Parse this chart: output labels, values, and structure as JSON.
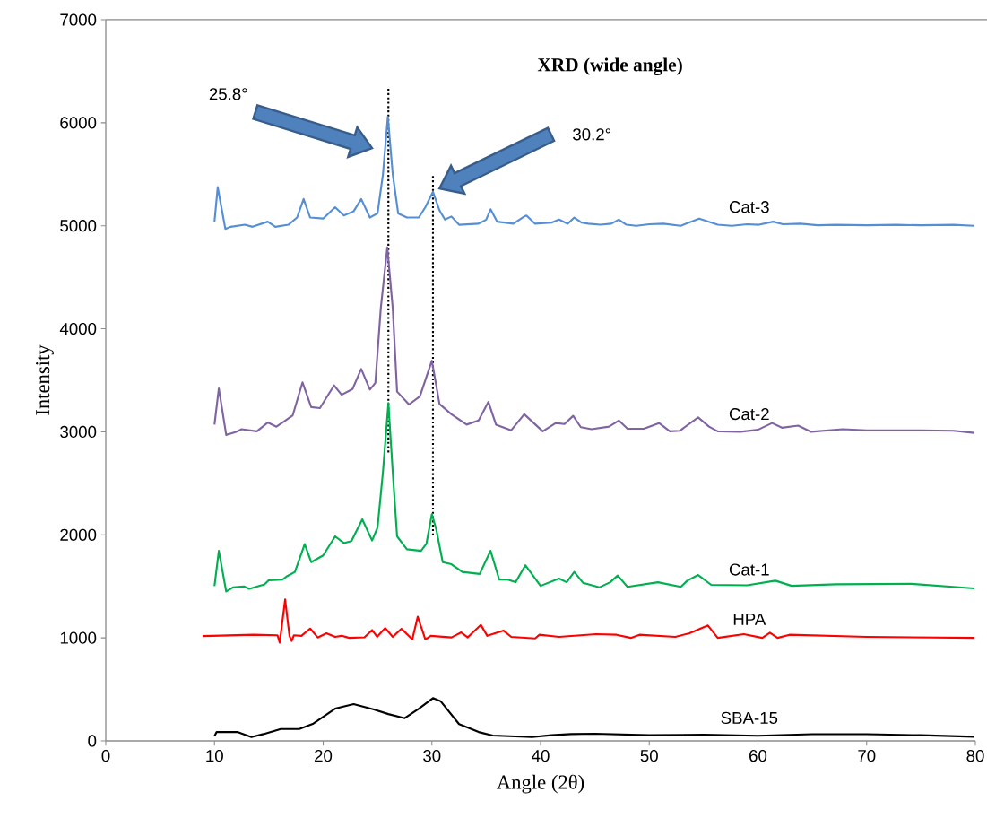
{
  "chart_data": {
    "type": "line",
    "title": "XRD (wide angle)",
    "xlabel": "Angle (2θ)",
    "ylabel": "Intensity",
    "xlim": [
      0,
      80
    ],
    "ylim": [
      0,
      7000
    ],
    "xticks": [
      0,
      10,
      20,
      30,
      40,
      50,
      60,
      70,
      80
    ],
    "yticks": [
      0,
      1000,
      2000,
      3000,
      4000,
      5000,
      6000,
      7000
    ],
    "grid": false,
    "line_style": "solid",
    "ref_lines": [
      {
        "axis": "x",
        "value": 26.0,
        "line_style": "dotted",
        "color": "#000000"
      },
      {
        "axis": "x",
        "value": 30.1,
        "line_style": "dotted",
        "color": "#000000"
      }
    ],
    "annotations": [
      "25.8°",
      "30.2°"
    ],
    "series": [
      {
        "name": "Cat-3",
        "color": "#558ed5",
        "x": [
          10,
          10.3,
          10.6,
          11.0,
          11.5,
          12.8,
          13.5,
          14.9,
          15.6,
          16.8,
          17.6,
          18.2,
          18.8,
          20.0,
          21.1,
          21.9,
          22.8,
          23.5,
          24.3,
          25.0,
          25.5,
          25.95,
          26.4,
          26.9,
          27.7,
          28.8,
          29.4,
          30.1,
          30.7,
          31.2,
          31.8,
          32.5,
          34.3,
          35.0,
          35.4,
          36.0,
          37.5,
          38.5,
          38.7,
          39.5,
          41.0,
          41.7,
          42.5,
          43.1,
          43.8,
          44.4,
          45.5,
          46.5,
          47.2,
          47.9,
          48.8,
          50.0,
          51.3,
          52.9,
          54.6,
          56.3,
          57.6,
          59.0,
          60.1,
          61.4,
          62.3,
          63.9,
          65.5,
          67.2,
          70,
          72.7,
          75,
          78,
          79.9
        ],
        "values": [
          5040,
          5375,
          5200,
          4970,
          4990,
          5010,
          4990,
          5040,
          4990,
          5010,
          5080,
          5260,
          5080,
          5070,
          5180,
          5100,
          5140,
          5260,
          5080,
          5120,
          5500,
          6060,
          5500,
          5120,
          5080,
          5080,
          5180,
          5330,
          5150,
          5060,
          5090,
          5010,
          5020,
          5060,
          5160,
          5040,
          5020,
          5090,
          5100,
          5020,
          5030,
          5060,
          5020,
          5080,
          5030,
          5020,
          5010,
          5020,
          5060,
          5010,
          5000,
          5015,
          5020,
          5000,
          5070,
          5010,
          5000,
          5015,
          5010,
          5040,
          5015,
          5020,
          5005,
          5010,
          5005,
          5010,
          5005,
          5010,
          5000
        ]
      },
      {
        "name": "Cat-2",
        "color": "#8064a2",
        "x": [
          10.0,
          10.4,
          11.08,
          12.0,
          12.5,
          13.9,
          14.9,
          15.7,
          16.4,
          17.2,
          18.1,
          18.9,
          19.7,
          21.0,
          21.7,
          22.7,
          23.5,
          24.3,
          24.8,
          25.3,
          25.9,
          26.4,
          26.8,
          27.9,
          28.9,
          30.0,
          30.7,
          31.8,
          33.2,
          34.3,
          35.2,
          35.9,
          37.3,
          38.5,
          40.2,
          41.4,
          42.2,
          43.0,
          43.7,
          44.7,
          46.3,
          47.2,
          48.0,
          49.5,
          50.9,
          51.9,
          52.8,
          54.5,
          55.5,
          56.3,
          58.4,
          60,
          61.3,
          62.2,
          63.7,
          64.9,
          67.8,
          70,
          72.7,
          75,
          78,
          79.9
        ],
        "values": [
          3070,
          3420,
          2970,
          3000,
          3025,
          3005,
          3090,
          3050,
          3100,
          3160,
          3480,
          3240,
          3230,
          3450,
          3360,
          3415,
          3610,
          3410,
          3475,
          4200,
          4790,
          4200,
          3390,
          3265,
          3345,
          3690,
          3270,
          3170,
          3070,
          3110,
          3290,
          3070,
          3015,
          3170,
          3005,
          3085,
          3075,
          3155,
          3045,
          3025,
          3050,
          3110,
          3030,
          3030,
          3085,
          3005,
          3010,
          3140,
          3050,
          3005,
          3000,
          3020,
          3085,
          3040,
          3060,
          3000,
          3025,
          3015,
          3015,
          3015,
          3010,
          2990
        ]
      },
      {
        "name": "Cat-1",
        "color": "#00b050",
        "x": [
          10.0,
          10.4,
          11.08,
          11.7,
          12.7,
          13.2,
          14.6,
          15.0,
          16.25,
          16.7,
          17.4,
          18.3,
          18.9,
          20.0,
          21.1,
          21.9,
          22.6,
          23.6,
          24.5,
          25.0,
          25.5,
          26.0,
          26.4,
          26.8,
          27.7,
          29.0,
          29.5,
          30.0,
          30.4,
          31.0,
          31.8,
          32.8,
          34.4,
          35.4,
          36.2,
          37.0,
          37.7,
          38.6,
          40.0,
          41.7,
          42.4,
          43.1,
          43.9,
          45.4,
          46.4,
          47.1,
          48.0,
          50.8,
          52.9,
          53.5,
          54.5,
          55.7,
          59.0,
          61.6,
          63.1,
          67.2,
          74.1,
          79.9
        ],
        "values": [
          1503,
          1845,
          1450,
          1490,
          1500,
          1475,
          1520,
          1560,
          1565,
          1600,
          1640,
          1910,
          1735,
          1800,
          1985,
          1920,
          1940,
          2150,
          1945,
          2070,
          2610,
          3280,
          2610,
          1985,
          1860,
          1845,
          1915,
          2200,
          2055,
          1735,
          1715,
          1640,
          1620,
          1845,
          1565,
          1565,
          1540,
          1705,
          1505,
          1575,
          1540,
          1640,
          1535,
          1490,
          1540,
          1605,
          1495,
          1540,
          1495,
          1555,
          1610,
          1515,
          1510,
          1555,
          1505,
          1520,
          1525,
          1480
        ]
      },
      {
        "name": "HPA",
        "color": "#ff0000",
        "x": [
          8.9,
          13.6,
          15.8,
          16.0,
          16.5,
          16.9,
          17.1,
          17.3,
          18.0,
          18.8,
          19.5,
          20.3,
          21.1,
          21.7,
          22.4,
          23.8,
          24.5,
          24.96,
          25.7,
          26.4,
          27.2,
          28.2,
          28.7,
          29.4,
          29.9,
          31.8,
          32.7,
          33.3,
          34.5,
          35.1,
          36.6,
          37.3,
          39.5,
          39.9,
          41.7,
          45.1,
          47.0,
          48.3,
          49.1,
          52.4,
          53.7,
          55.4,
          56.3,
          58.7,
          60.4,
          61.1,
          61.8,
          62.9,
          70.0,
          79.9
        ],
        "values": [
          1018,
          1030,
          1025,
          953,
          1372,
          1020,
          970,
          1025,
          1020,
          1090,
          1004,
          1045,
          1010,
          1020,
          1000,
          1005,
          1076,
          1010,
          1096,
          1010,
          1088,
          985,
          1206,
          985,
          1020,
          1004,
          1053,
          1005,
          1126,
          1020,
          1070,
          1010,
          995,
          1030,
          1010,
          1036,
          1030,
          1000,
          1030,
          1010,
          1045,
          1120,
          1000,
          1036,
          1000,
          1050,
          1000,
          1030,
          1010,
          1000
        ]
      },
      {
        "name": "SBA-15",
        "color": "#000000",
        "x": [
          10.0,
          10.2,
          12.1,
          13.4,
          14.5,
          16.1,
          17.8,
          19.1,
          21.1,
          22.8,
          24.6,
          26.0,
          27.5,
          28.8,
          30.1,
          30.8,
          32.5,
          34.3,
          35.6,
          39.2,
          41,
          42.8,
          45,
          50,
          55,
          60,
          65,
          70,
          75,
          79.9
        ],
        "values": [
          46,
          86,
          86,
          37,
          66,
          115,
          115,
          168,
          313,
          357,
          307,
          260,
          220,
          313,
          415,
          386,
          163,
          86,
          52,
          37,
          55,
          66,
          70,
          55,
          60,
          50,
          65,
          65,
          55,
          40
        ]
      }
    ]
  }
}
